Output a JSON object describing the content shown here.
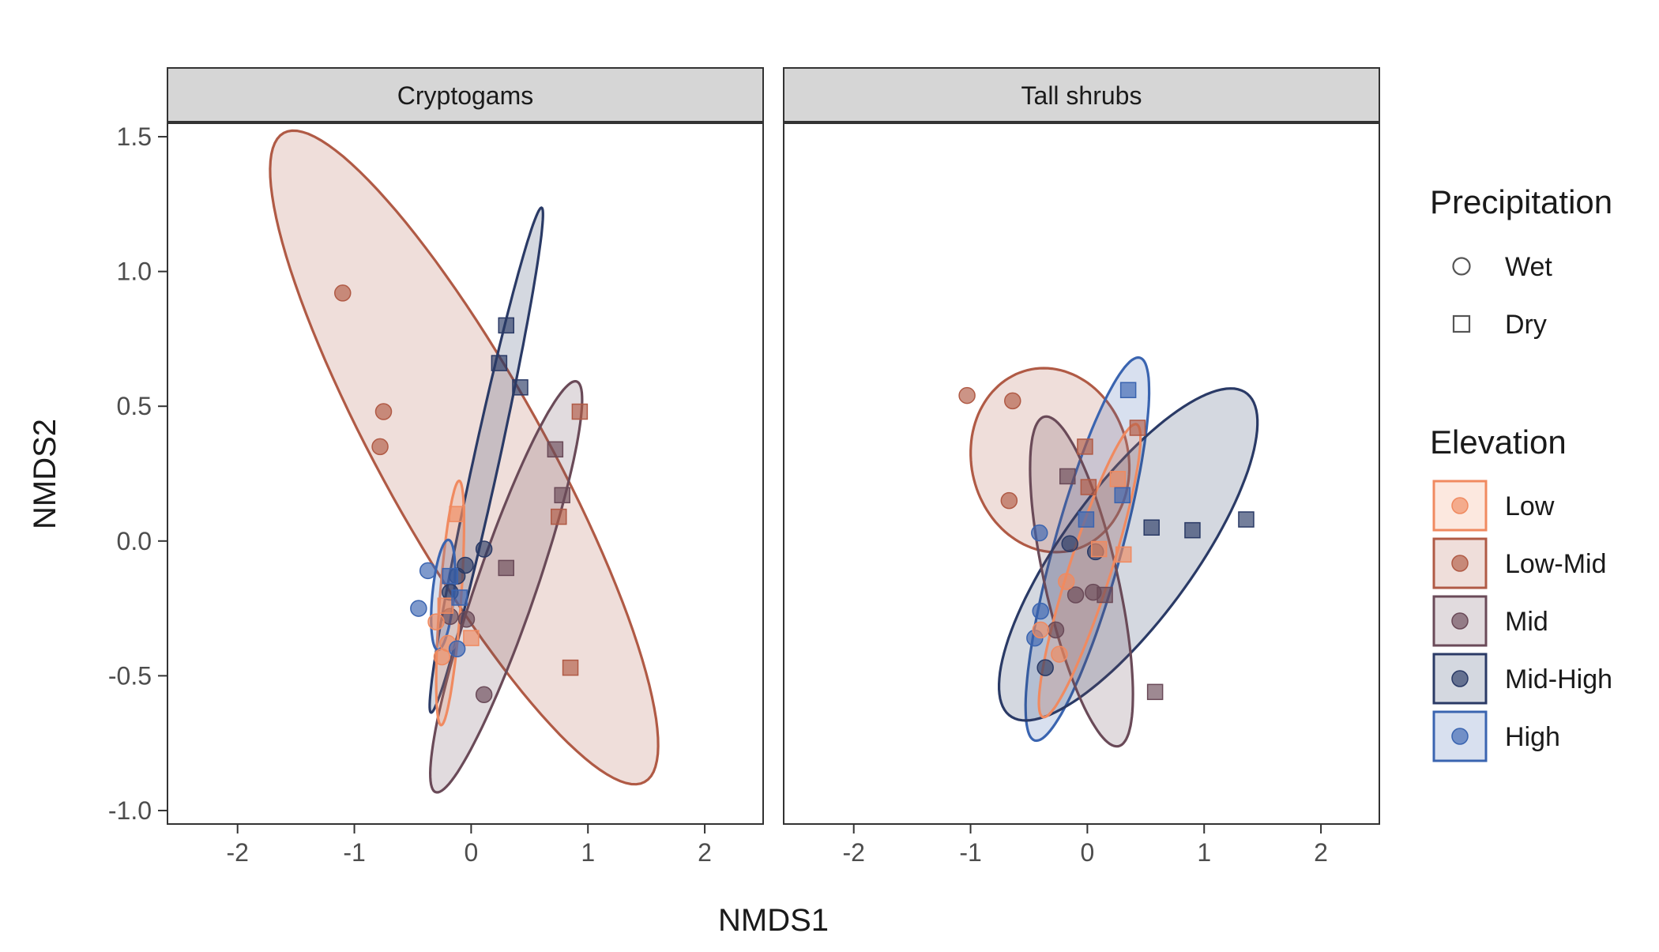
{
  "chart_data": {
    "type": "scatter",
    "xlabel": "NMDS1",
    "ylabel": "NMDS2",
    "xlim": [
      -2.6,
      2.5
    ],
    "ylim": [
      -1.05,
      1.55
    ],
    "x_ticks": [
      -2,
      -1,
      0,
      1,
      2
    ],
    "y_ticks": [
      -1.0,
      -0.5,
      0.0,
      0.5,
      1.0,
      1.5
    ],
    "x_tick_labels": [
      "-2",
      "-1",
      "0",
      "1",
      "2"
    ],
    "y_tick_labels": [
      "-1.0",
      "-0.5",
      "0.0",
      "0.5",
      "1.0",
      "1.5"
    ],
    "grid": false,
    "legend_placement": "right",
    "elevation_colors": {
      "Low": "#F08A60",
      "Low-Mid": "#B05A45",
      "Mid": "#6A4A58",
      "Mid-High": "#2A3A66",
      "High": "#3A64B0"
    },
    "legends": [
      {
        "title": "Precipitation",
        "entries": [
          {
            "label": "Wet",
            "shape": "circle"
          },
          {
            "label": "Dry",
            "shape": "square"
          }
        ]
      },
      {
        "title": "Elevation",
        "entries": [
          {
            "label": "Low",
            "group": "Low"
          },
          {
            "label": "Low-Mid",
            "group": "Low-Mid"
          },
          {
            "label": "Mid",
            "group": "Mid"
          },
          {
            "label": "Mid-High",
            "group": "Mid-High"
          },
          {
            "label": "High",
            "group": "High"
          }
        ]
      }
    ],
    "panels": [
      {
        "title": "Cryptogams",
        "ellipses": [
          {
            "group": "Low-Mid",
            "cx": -0.06,
            "cy": 0.31,
            "rx": 2.0,
            "ry": 0.48,
            "angle_deg": -35
          },
          {
            "group": "Mid-High",
            "cx": 0.13,
            "cy": 0.3,
            "rx": 1.05,
            "ry": 0.1,
            "angle_deg": 63
          },
          {
            "group": "Mid",
            "cx": 0.3,
            "cy": -0.17,
            "rx": 0.98,
            "ry": 0.21,
            "angle_deg": 50
          },
          {
            "group": "Low",
            "cx": -0.18,
            "cy": -0.23,
            "rx": 0.46,
            "ry": 0.09,
            "angle_deg": 80
          },
          {
            "group": "High",
            "cx": -0.24,
            "cy": -0.2,
            "rx": 0.21,
            "ry": 0.09,
            "angle_deg": 75
          }
        ],
        "points": [
          {
            "x": -1.1,
            "y": 0.92,
            "group": "Low-Mid",
            "shape": "circle"
          },
          {
            "x": -0.75,
            "y": 0.48,
            "group": "Low-Mid",
            "shape": "circle"
          },
          {
            "x": -0.78,
            "y": 0.35,
            "group": "Low-Mid",
            "shape": "circle"
          },
          {
            "x": 0.93,
            "y": 0.48,
            "group": "Low-Mid",
            "shape": "square"
          },
          {
            "x": 0.75,
            "y": 0.09,
            "group": "Low-Mid",
            "shape": "square"
          },
          {
            "x": 0.85,
            "y": -0.47,
            "group": "Low-Mid",
            "shape": "square"
          },
          {
            "x": 0.3,
            "y": 0.8,
            "group": "Mid-High",
            "shape": "square"
          },
          {
            "x": 0.24,
            "y": 0.66,
            "group": "Mid-High",
            "shape": "square"
          },
          {
            "x": 0.42,
            "y": 0.57,
            "group": "Mid-High",
            "shape": "square"
          },
          {
            "x": -0.05,
            "y": -0.09,
            "group": "Mid-High",
            "shape": "circle"
          },
          {
            "x": 0.11,
            "y": -0.03,
            "group": "Mid-High",
            "shape": "circle"
          },
          {
            "x": -0.12,
            "y": -0.13,
            "group": "Mid-High",
            "shape": "circle"
          },
          {
            "x": -0.18,
            "y": -0.19,
            "group": "Mid-High",
            "shape": "circle"
          },
          {
            "x": 0.72,
            "y": 0.34,
            "group": "Mid",
            "shape": "square"
          },
          {
            "x": 0.78,
            "y": 0.17,
            "group": "Mid",
            "shape": "square"
          },
          {
            "x": 0.3,
            "y": -0.1,
            "group": "Mid",
            "shape": "square"
          },
          {
            "x": 0.11,
            "y": -0.57,
            "group": "Mid",
            "shape": "circle"
          },
          {
            "x": -0.18,
            "y": -0.28,
            "group": "Mid",
            "shape": "circle"
          },
          {
            "x": -0.04,
            "y": -0.29,
            "group": "Mid",
            "shape": "circle"
          },
          {
            "x": -0.12,
            "y": 0.1,
            "group": "Low",
            "shape": "square"
          },
          {
            "x": -0.22,
            "y": -0.24,
            "group": "Low",
            "shape": "square"
          },
          {
            "x": 0.0,
            "y": -0.36,
            "group": "Low",
            "shape": "square"
          },
          {
            "x": -0.25,
            "y": -0.43,
            "group": "Low",
            "shape": "circle"
          },
          {
            "x": -0.3,
            "y": -0.3,
            "group": "Low",
            "shape": "circle"
          },
          {
            "x": -0.2,
            "y": -0.38,
            "group": "Low",
            "shape": "circle"
          },
          {
            "x": -0.45,
            "y": -0.25,
            "group": "High",
            "shape": "circle"
          },
          {
            "x": -0.37,
            "y": -0.11,
            "group": "High",
            "shape": "circle"
          },
          {
            "x": -0.18,
            "y": -0.13,
            "group": "High",
            "shape": "square"
          },
          {
            "x": -0.1,
            "y": -0.21,
            "group": "High",
            "shape": "square"
          },
          {
            "x": -0.12,
            "y": -0.4,
            "group": "High",
            "shape": "circle"
          }
        ]
      },
      {
        "title": "Tall shrubs",
        "ellipses": [
          {
            "group": "Low-Mid",
            "cx": -0.32,
            "cy": 0.3,
            "rx": 0.68,
            "ry": 0.34,
            "angle_deg": -3
          },
          {
            "group": "High",
            "cx": 0.0,
            "cy": -0.03,
            "rx": 0.85,
            "ry": 0.25,
            "angle_deg": 55
          },
          {
            "group": "Mid-High",
            "cx": 0.35,
            "cy": -0.05,
            "rx": 1.22,
            "ry": 0.34,
            "angle_deg": 26
          },
          {
            "group": "Mid",
            "cx": -0.05,
            "cy": -0.15,
            "rx": 0.7,
            "ry": 0.28,
            "angle_deg": -58
          },
          {
            "group": "Low",
            "cx": 0.02,
            "cy": -0.11,
            "rx": 0.68,
            "ry": 0.15,
            "angle_deg": 52
          }
        ],
        "points": [
          {
            "x": -1.03,
            "y": 0.54,
            "group": "Low-Mid",
            "shape": "circle"
          },
          {
            "x": -0.64,
            "y": 0.52,
            "group": "Low-Mid",
            "shape": "circle"
          },
          {
            "x": -0.67,
            "y": 0.15,
            "group": "Low-Mid",
            "shape": "circle"
          },
          {
            "x": -0.02,
            "y": 0.35,
            "group": "Low-Mid",
            "shape": "square"
          },
          {
            "x": 0.01,
            "y": 0.2,
            "group": "Low-Mid",
            "shape": "square"
          },
          {
            "x": 0.43,
            "y": 0.42,
            "group": "Low-Mid",
            "shape": "square"
          },
          {
            "x": 0.35,
            "y": 0.56,
            "group": "High",
            "shape": "square"
          },
          {
            "x": 0.3,
            "y": 0.17,
            "group": "High",
            "shape": "square"
          },
          {
            "x": -0.01,
            "y": 0.08,
            "group": "High",
            "shape": "square"
          },
          {
            "x": -0.41,
            "y": 0.03,
            "group": "High",
            "shape": "circle"
          },
          {
            "x": -0.4,
            "y": -0.26,
            "group": "High",
            "shape": "circle"
          },
          {
            "x": -0.45,
            "y": -0.36,
            "group": "High",
            "shape": "circle"
          },
          {
            "x": 0.55,
            "y": 0.05,
            "group": "Mid-High",
            "shape": "square"
          },
          {
            "x": 0.9,
            "y": 0.04,
            "group": "Mid-High",
            "shape": "square"
          },
          {
            "x": 1.36,
            "y": 0.08,
            "group": "Mid-High",
            "shape": "square"
          },
          {
            "x": -0.15,
            "y": -0.01,
            "group": "Mid-High",
            "shape": "circle"
          },
          {
            "x": 0.07,
            "y": -0.04,
            "group": "Mid-High",
            "shape": "circle"
          },
          {
            "x": -0.36,
            "y": -0.47,
            "group": "Mid-High",
            "shape": "circle"
          },
          {
            "x": -0.17,
            "y": 0.24,
            "group": "Mid",
            "shape": "square"
          },
          {
            "x": 0.15,
            "y": -0.2,
            "group": "Mid",
            "shape": "square"
          },
          {
            "x": 0.58,
            "y": -0.56,
            "group": "Mid",
            "shape": "square"
          },
          {
            "x": -0.1,
            "y": -0.2,
            "group": "Mid",
            "shape": "circle"
          },
          {
            "x": 0.05,
            "y": -0.19,
            "group": "Mid",
            "shape": "circle"
          },
          {
            "x": -0.27,
            "y": -0.33,
            "group": "Mid",
            "shape": "circle"
          },
          {
            "x": 0.26,
            "y": 0.23,
            "group": "Low",
            "shape": "square"
          },
          {
            "x": 0.1,
            "y": -0.03,
            "group": "Low",
            "shape": "square"
          },
          {
            "x": 0.31,
            "y": -0.05,
            "group": "Low",
            "shape": "square"
          },
          {
            "x": -0.18,
            "y": -0.15,
            "group": "Low",
            "shape": "circle"
          },
          {
            "x": -0.4,
            "y": -0.33,
            "group": "Low",
            "shape": "circle"
          },
          {
            "x": -0.24,
            "y": -0.42,
            "group": "Low",
            "shape": "circle"
          }
        ]
      }
    ]
  }
}
